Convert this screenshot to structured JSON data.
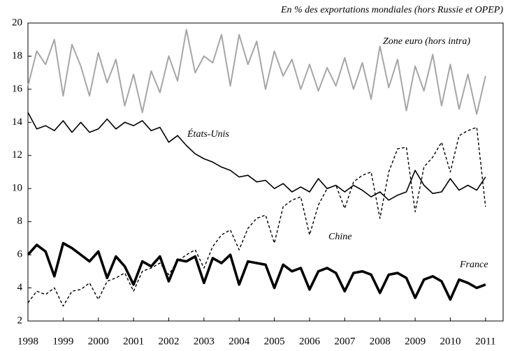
{
  "chart_data": {
    "type": "line",
    "title": "En % des exportations mondiales (hors Russie et OPEP)",
    "x": [
      1998,
      1998.25,
      1998.5,
      1998.75,
      1999,
      1999.25,
      1999.5,
      1999.75,
      2000,
      2000.25,
      2000.5,
      2000.75,
      2001,
      2001.25,
      2001.5,
      2001.75,
      2002,
      2002.25,
      2002.5,
      2002.75,
      2003,
      2003.25,
      2003.5,
      2003.75,
      2004,
      2004.25,
      2004.5,
      2004.75,
      2005,
      2005.25,
      2005.5,
      2005.75,
      2006,
      2006.25,
      2006.5,
      2006.75,
      2007,
      2007.25,
      2007.5,
      2007.75,
      2008,
      2008.25,
      2008.5,
      2008.75,
      2009,
      2009.25,
      2009.5,
      2009.75,
      2010,
      2010.25,
      2010.5,
      2010.75,
      2011
    ],
    "series": [
      {
        "name": "Zone euro (hors intra)",
        "color": "#a6a6a6",
        "dashed": false,
        "values": [
          16.2,
          18.3,
          17.5,
          19.0,
          15.6,
          18.7,
          17.4,
          15.6,
          18.2,
          16.4,
          17.8,
          15.0,
          16.9,
          14.6,
          17.1,
          15.8,
          18.0,
          16.5,
          19.6,
          17.0,
          18.0,
          17.6,
          19.3,
          16.2,
          19.3,
          17.5,
          18.9,
          16.0,
          18.3,
          16.8,
          17.8,
          16.0,
          17.5,
          15.9,
          17.3,
          16.2,
          17.9,
          16.0,
          17.6,
          15.4,
          18.6,
          16.1,
          17.8,
          14.7,
          17.4,
          15.9,
          18.1,
          15.0,
          17.5,
          14.8,
          16.9,
          14.5,
          16.8
        ]
      },
      {
        "name": "États-Unis",
        "color": "#000000",
        "dashed": false,
        "values": [
          14.6,
          13.6,
          13.8,
          13.5,
          14.1,
          13.4,
          14.0,
          13.4,
          13.6,
          14.2,
          13.6,
          14.0,
          13.8,
          14.1,
          13.5,
          13.7,
          12.8,
          13.2,
          12.6,
          12.1,
          11.8,
          11.6,
          11.3,
          11.1,
          10.7,
          10.8,
          10.4,
          10.5,
          10.0,
          10.3,
          9.8,
          10.1,
          9.8,
          10.6,
          10.0,
          10.2,
          9.8,
          10.2,
          9.9,
          9.5,
          9.8,
          9.3,
          9.6,
          9.8,
          11.1,
          10.2,
          9.7,
          9.8,
          10.6,
          9.9,
          10.2,
          9.9,
          10.7
        ]
      },
      {
        "name": "Chine",
        "color": "#000000",
        "dashed": true,
        "values": [
          3.1,
          3.8,
          3.6,
          4.0,
          2.9,
          3.8,
          3.9,
          4.3,
          3.3,
          4.4,
          4.6,
          4.9,
          3.8,
          5.0,
          5.2,
          5.5,
          4.8,
          5.6,
          6.0,
          6.3,
          5.2,
          6.5,
          7.2,
          7.5,
          6.3,
          7.6,
          8.2,
          8.4,
          6.7,
          8.9,
          9.3,
          9.5,
          7.2,
          9.0,
          10.0,
          10.2,
          8.8,
          10.4,
          10.8,
          11.0,
          8.2,
          11.0,
          12.4,
          12.5,
          8.6,
          11.3,
          11.9,
          12.8,
          11.0,
          13.2,
          13.5,
          13.7,
          8.9
        ]
      },
      {
        "name": "France",
        "color": "#000000",
        "dashed": false,
        "values": [
          6.0,
          6.6,
          6.2,
          4.7,
          6.7,
          6.4,
          6.0,
          5.6,
          6.2,
          4.6,
          5.9,
          5.3,
          4.2,
          5.6,
          5.3,
          5.9,
          4.4,
          5.7,
          5.6,
          5.9,
          4.3,
          5.8,
          5.5,
          6.0,
          4.2,
          5.6,
          5.5,
          5.4,
          4.0,
          5.4,
          5.0,
          5.2,
          3.9,
          5.0,
          5.2,
          4.9,
          3.8,
          4.9,
          5.0,
          4.8,
          3.7,
          4.8,
          4.9,
          4.6,
          3.4,
          4.5,
          4.7,
          4.4,
          3.3,
          4.5,
          4.3,
          4.0,
          4.2
        ]
      }
    ],
    "xlim": [
      1998,
      2011.5
    ],
    "xticks": [
      1998,
      1999,
      2000,
      2001,
      2002,
      2003,
      2004,
      2005,
      2006,
      2007,
      2008,
      2009,
      2010,
      2011
    ],
    "ylim": [
      2,
      20
    ],
    "yticks": [
      2,
      4,
      6,
      8,
      10,
      12,
      14,
      16,
      18,
      20
    ],
    "grid": false
  }
}
